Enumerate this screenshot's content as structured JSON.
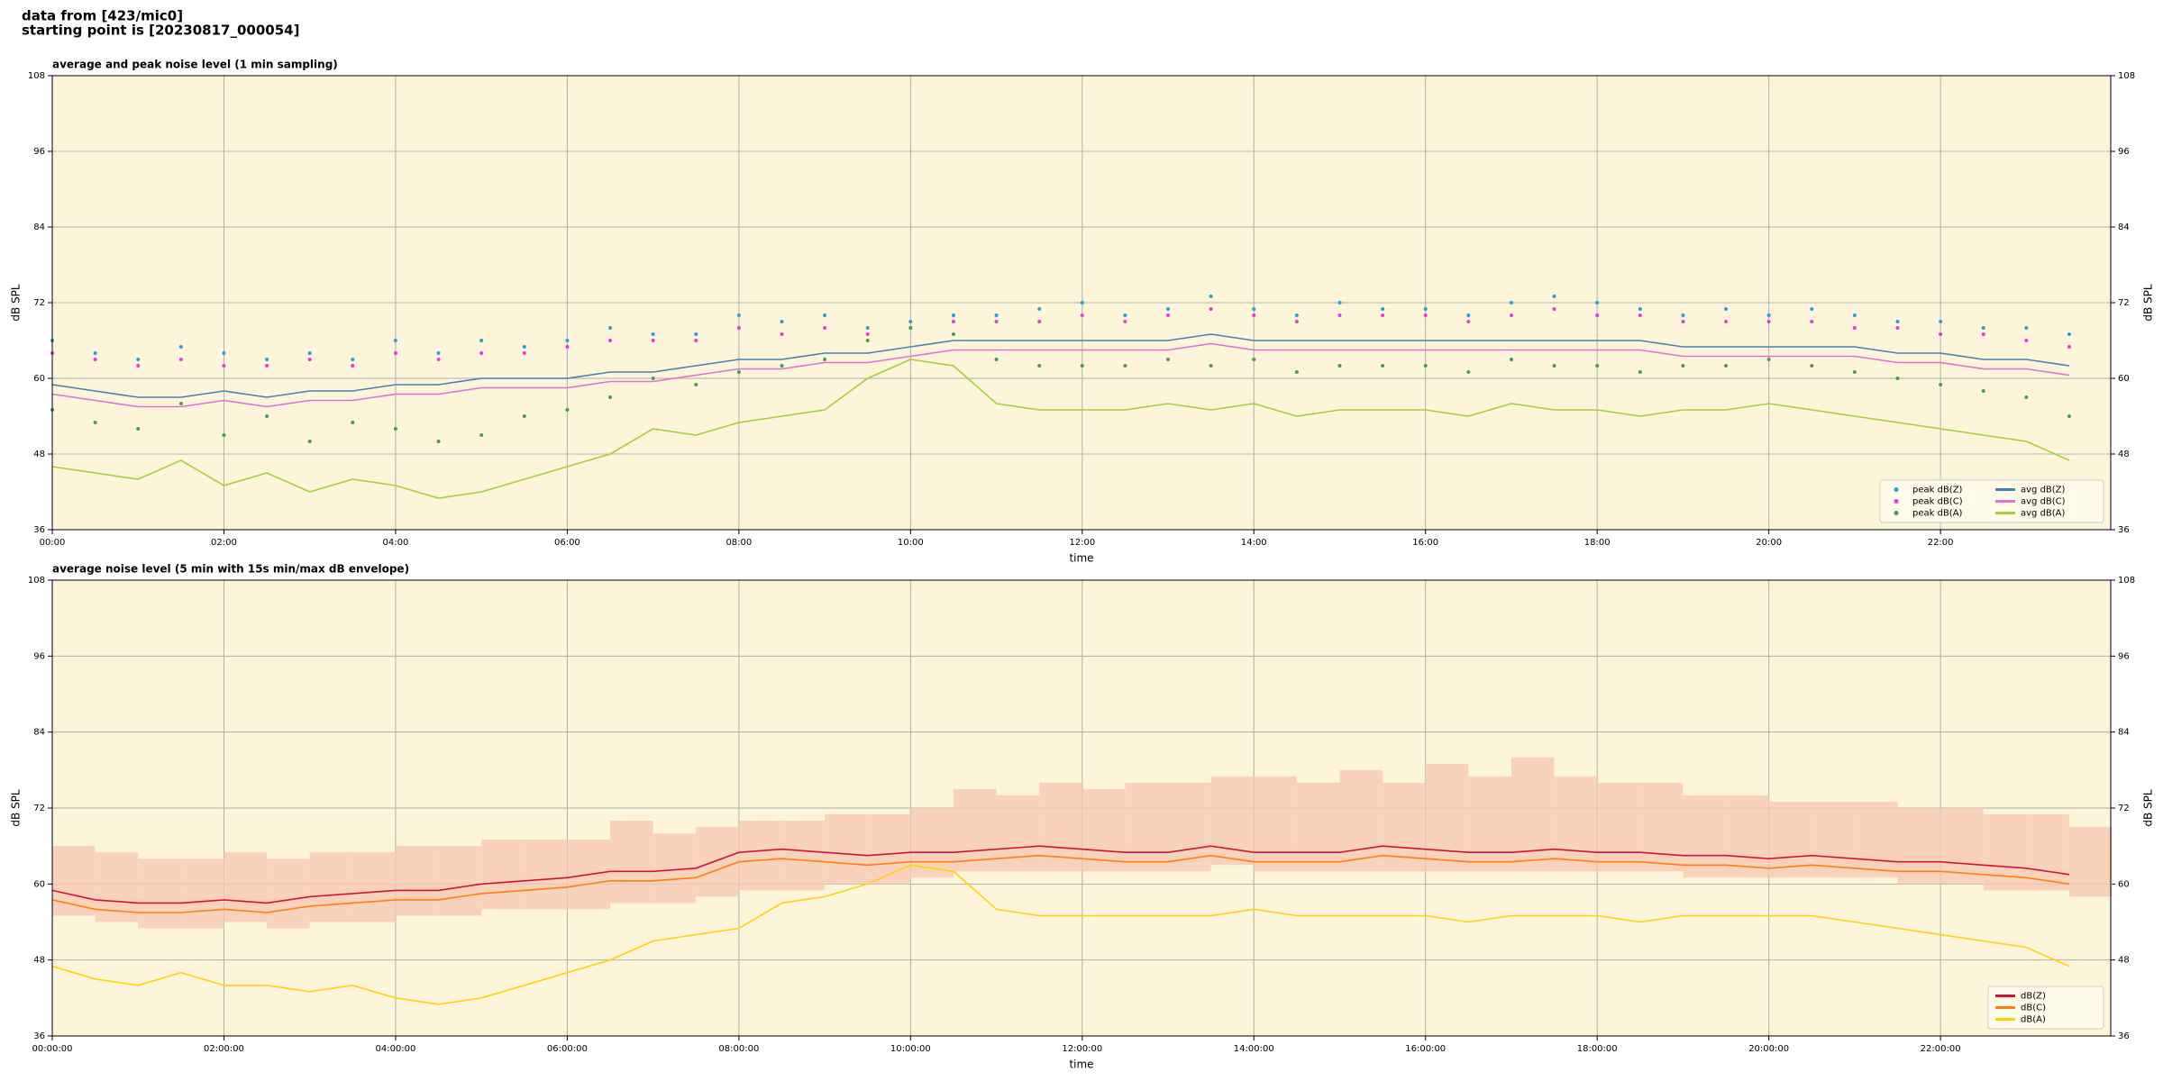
{
  "header": {
    "lines": [
      "data from [423/mic0]",
      "starting point is [20230817_000054]"
    ]
  },
  "chart_data": [
    {
      "type": "line",
      "title": "average and peak noise level (1 min sampling)",
      "xlabel": "time",
      "ylabel": "dB SPL",
      "x": [
        "00:00",
        "00:30",
        "01:00",
        "01:30",
        "02:00",
        "02:30",
        "03:00",
        "03:30",
        "04:00",
        "04:30",
        "05:00",
        "05:30",
        "06:00",
        "06:30",
        "07:00",
        "07:30",
        "08:00",
        "08:30",
        "09:00",
        "09:30",
        "10:00",
        "10:30",
        "11:00",
        "11:30",
        "12:00",
        "12:30",
        "13:00",
        "13:30",
        "14:00",
        "14:30",
        "15:00",
        "15:30",
        "16:00",
        "16:30",
        "17:00",
        "17:30",
        "18:00",
        "18:30",
        "19:00",
        "19:30",
        "20:00",
        "20:30",
        "21:00",
        "21:30",
        "22:00",
        "22:30",
        "23:00",
        "23:30"
      ],
      "xlim": [
        "00:00",
        "23:59"
      ],
      "xticks": [
        "00:00",
        "02:00",
        "04:00",
        "06:00",
        "08:00",
        "10:00",
        "12:00",
        "14:00",
        "16:00",
        "18:00",
        "20:00",
        "22:00"
      ],
      "ylim": [
        36,
        108
      ],
      "yticks": [
        36,
        48,
        60,
        72,
        84,
        96,
        108
      ],
      "grid": true,
      "background": "#fdf5d9",
      "legend": "lower right",
      "legend_columns": 2,
      "series": [
        {
          "name": "peak dB(Z)",
          "style": "points",
          "color": "#2a9fd8",
          "values": [
            66,
            64,
            63,
            65,
            64,
            63,
            64,
            63,
            66,
            64,
            66,
            65,
            66,
            68,
            67,
            67,
            70,
            69,
            70,
            68,
            69,
            70,
            70,
            71,
            72,
            70,
            71,
            73,
            71,
            70,
            72,
            71,
            71,
            70,
            72,
            73,
            72,
            71,
            70,
            71,
            70,
            71,
            70,
            69,
            69,
            68,
            68,
            67
          ]
        },
        {
          "name": "peak dB(C)",
          "style": "points",
          "color": "#e03ce0",
          "values": [
            64,
            63,
            62,
            63,
            62,
            62,
            63,
            62,
            64,
            63,
            64,
            64,
            65,
            66,
            66,
            66,
            68,
            67,
            68,
            67,
            68,
            69,
            69,
            69,
            70,
            69,
            70,
            71,
            70,
            69,
            70,
            70,
            70,
            69,
            70,
            71,
            70,
            70,
            69,
            69,
            69,
            69,
            68,
            68,
            67,
            67,
            66,
            65
          ]
        },
        {
          "name": "peak dB(A)",
          "style": "points",
          "color": "#4e9a4e",
          "values": [
            55,
            53,
            52,
            56,
            51,
            54,
            50,
            53,
            52,
            50,
            51,
            54,
            55,
            57,
            60,
            59,
            61,
            62,
            63,
            66,
            68,
            67,
            63,
            62,
            62,
            62,
            63,
            62,
            63,
            61,
            62,
            62,
            62,
            61,
            63,
            62,
            62,
            61,
            62,
            62,
            63,
            62,
            61,
            60,
            59,
            58,
            57,
            54
          ]
        },
        {
          "name": "avg dB(Z)",
          "style": "line",
          "color": "#4a80b4",
          "values": [
            59,
            58,
            57,
            57,
            58,
            57,
            58,
            58,
            59,
            59,
            60,
            60,
            60,
            61,
            61,
            62,
            63,
            63,
            64,
            64,
            65,
            66,
            66,
            66,
            66,
            66,
            66,
            67,
            66,
            66,
            66,
            66,
            66,
            66,
            66,
            66,
            66,
            66,
            65,
            65,
            65,
            65,
            65,
            64,
            64,
            63,
            63,
            62
          ]
        },
        {
          "name": "avg dB(C)",
          "style": "line",
          "color": "#e070d4",
          "values": [
            57.5,
            56.5,
            55.5,
            55.5,
            56.5,
            55.5,
            56.5,
            56.5,
            57.5,
            57.5,
            58.5,
            58.5,
            58.5,
            59.5,
            59.5,
            60.5,
            61.5,
            61.5,
            62.5,
            62.5,
            63.5,
            64.5,
            64.5,
            64.5,
            64.5,
            64.5,
            64.5,
            65.5,
            64.5,
            64.5,
            64.5,
            64.5,
            64.5,
            64.5,
            64.5,
            64.5,
            64.5,
            64.5,
            63.5,
            63.5,
            63.5,
            63.5,
            63.5,
            62.5,
            62.5,
            61.5,
            61.5,
            60.5
          ]
        },
        {
          "name": "avg dB(A)",
          "style": "line",
          "color": "#a6cf3e",
          "values": [
            46,
            45,
            44,
            47,
            43,
            45,
            42,
            44,
            43,
            41,
            42,
            44,
            46,
            48,
            52,
            51,
            53,
            54,
            55,
            60,
            63,
            62,
            56,
            55,
            55,
            55,
            56,
            55,
            56,
            54,
            55,
            55,
            55,
            54,
            56,
            55,
            55,
            54,
            55,
            55,
            56,
            55,
            54,
            53,
            52,
            51,
            50,
            47
          ]
        }
      ]
    },
    {
      "type": "line",
      "title": "average noise level (5 min with 15s min/max dB envelope)",
      "xlabel": "time",
      "ylabel": "dB SPL",
      "x": [
        "00:00:00",
        "00:30:00",
        "01:00:00",
        "01:30:00",
        "02:00:00",
        "02:30:00",
        "03:00:00",
        "03:30:00",
        "04:00:00",
        "04:30:00",
        "05:00:00",
        "05:30:00",
        "06:00:00",
        "06:30:00",
        "07:00:00",
        "07:30:00",
        "08:00:00",
        "08:30:00",
        "09:00:00",
        "09:30:00",
        "10:00:00",
        "10:30:00",
        "11:00:00",
        "11:30:00",
        "12:00:00",
        "12:30:00",
        "13:00:00",
        "13:30:00",
        "14:00:00",
        "14:30:00",
        "15:00:00",
        "15:30:00",
        "16:00:00",
        "16:30:00",
        "17:00:00",
        "17:30:00",
        "18:00:00",
        "18:30:00",
        "19:00:00",
        "19:30:00",
        "20:00:00",
        "20:30:00",
        "21:00:00",
        "21:30:00",
        "22:00:00",
        "22:30:00",
        "23:00:00",
        "23:30:00"
      ],
      "xlim": [
        "00:00:00",
        "23:59:00"
      ],
      "xticks": [
        "00:00:00",
        "02:00:00",
        "04:00:00",
        "06:00:00",
        "08:00:00",
        "10:00:00",
        "12:00:00",
        "14:00:00",
        "16:00:00",
        "18:00:00",
        "20:00:00",
        "22:00:00"
      ],
      "ylim": [
        36,
        108
      ],
      "yticks": [
        36,
        48,
        60,
        72,
        84,
        96,
        108
      ],
      "grid": true,
      "background": "#fdf5d9",
      "legend": "lower right",
      "legend_columns": 1,
      "envelope": {
        "color": "#f7c9b4",
        "lower": [
          55,
          54,
          53,
          53,
          54,
          53,
          54,
          54,
          55,
          55,
          56,
          56,
          56,
          57,
          57,
          58,
          59,
          59,
          60,
          60,
          61,
          62,
          62,
          62,
          62,
          62,
          62,
          63,
          62,
          62,
          62,
          62,
          62,
          62,
          62,
          62,
          62,
          62,
          61,
          61,
          61,
          61,
          61,
          60,
          60,
          59,
          59,
          58
        ],
        "upper": [
          66,
          65,
          64,
          64,
          65,
          64,
          65,
          65,
          66,
          66,
          67,
          67,
          67,
          70,
          68,
          69,
          70,
          70,
          71,
          71,
          72,
          75,
          74,
          76,
          75,
          76,
          76,
          77,
          77,
          76,
          78,
          76,
          79,
          77,
          80,
          77,
          76,
          76,
          74,
          74,
          73,
          73,
          73,
          72,
          72,
          71,
          71,
          69
        ]
      },
      "series": [
        {
          "name": "dB(Z)",
          "style": "line",
          "color": "#d0143c",
          "values": [
            59,
            57.5,
            57,
            57,
            57.5,
            57,
            58,
            58.5,
            59,
            59,
            60,
            60.5,
            61,
            62,
            62,
            62.5,
            65,
            65.5,
            65,
            64.5,
            65,
            65,
            65.5,
            66,
            65.5,
            65,
            65,
            66,
            65,
            65,
            65,
            66,
            65.5,
            65,
            65,
            65.5,
            65,
            65,
            64.5,
            64.5,
            64,
            64.5,
            64,
            63.5,
            63.5,
            63,
            62.5,
            61.5
          ]
        },
        {
          "name": "dB(C)",
          "style": "line",
          "color": "#ff8010",
          "values": [
            57.5,
            56,
            55.5,
            55.5,
            56,
            55.5,
            56.5,
            57,
            57.5,
            57.5,
            58.5,
            59,
            59.5,
            60.5,
            60.5,
            61,
            63.5,
            64,
            63.5,
            63,
            63.5,
            63.5,
            64,
            64.5,
            64,
            63.5,
            63.5,
            64.5,
            63.5,
            63.5,
            63.5,
            64.5,
            64,
            63.5,
            63.5,
            64,
            63.5,
            63.5,
            63,
            63,
            62.5,
            63,
            62.5,
            62,
            62,
            61.5,
            61,
            60
          ]
        },
        {
          "name": "dB(A)",
          "style": "line",
          "color": "#ffd20a",
          "values": [
            47,
            45,
            44,
            46,
            44,
            44,
            43,
            44,
            42,
            41,
            42,
            44,
            46,
            48,
            51,
            52,
            53,
            57,
            58,
            60,
            63,
            62,
            56,
            55,
            55,
            55,
            55,
            55,
            56,
            55,
            55,
            55,
            55,
            54,
            55,
            55,
            55,
            54,
            55,
            55,
            55,
            55,
            54,
            53,
            52,
            51,
            50,
            47
          ]
        }
      ]
    }
  ]
}
